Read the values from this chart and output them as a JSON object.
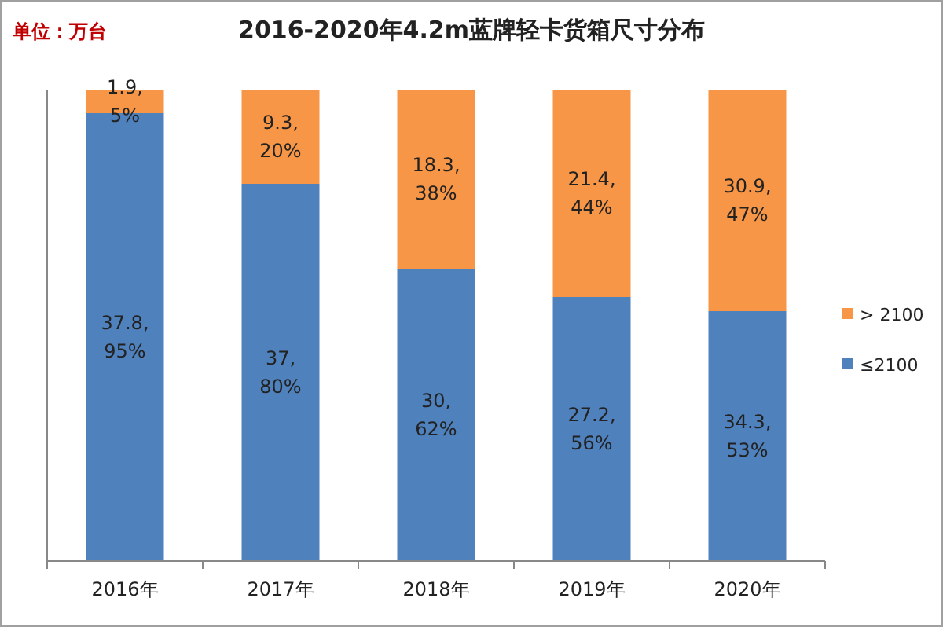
{
  "chart_data": {
    "type": "bar",
    "title": "2016-2020年4.2m蓝牌轻卡货箱尺寸分布",
    "annotations": [
      "单位：万台"
    ],
    "categories": [
      "2016年",
      "2017年",
      "2018年",
      "2019年",
      "2020年"
    ],
    "stacked": true,
    "ylim": [
      0,
      100
    ],
    "legend": "right",
    "tick_labels": "x",
    "series": [
      {
        "name": "≤2100",
        "color": "#4f81bd",
        "values": [
          95,
          80,
          62,
          56,
          53
        ],
        "value_labels": [
          "37.8,\n95%",
          "37,\n80%",
          "30,\n62%",
          "27.2,\n56%",
          "34.3,\n53%"
        ]
      },
      {
        "name": "> 2100",
        "color": "#f79646",
        "values": [
          5,
          20,
          38,
          44,
          47
        ],
        "value_labels": [
          "1.9,\n5%",
          "9.3,\n20%",
          "18.3,\n38%",
          "21.4,\n44%",
          "30.9,\n47%"
        ]
      }
    ]
  }
}
